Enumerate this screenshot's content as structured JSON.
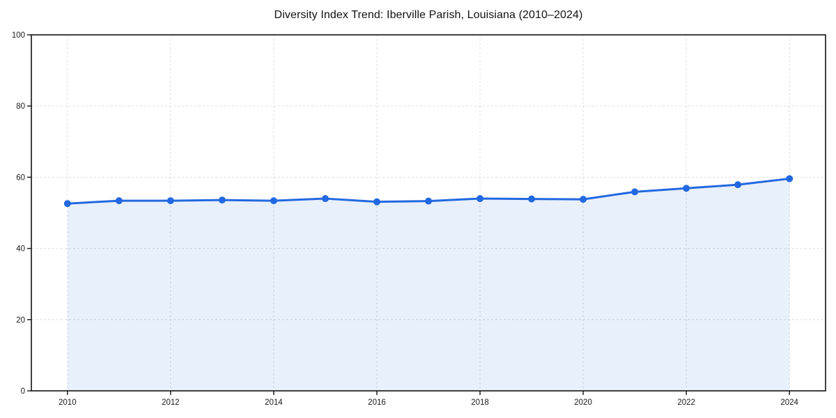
{
  "chart_data": {
    "type": "area",
    "title": "Diversity Index Trend: Iberville Parish, Louisiana (2010–2024)",
    "x": [
      2010,
      2011,
      2012,
      2013,
      2014,
      2015,
      2016,
      2017,
      2018,
      2019,
      2020,
      2021,
      2022,
      2023,
      2024
    ],
    "values": [
      52.6,
      53.4,
      53.4,
      53.6,
      53.4,
      54.0,
      53.1,
      53.3,
      54.0,
      53.9,
      53.8,
      55.9,
      56.9,
      57.9,
      59.6
    ],
    "xlabel": "",
    "ylabel": "",
    "xlim": [
      2009.3,
      2024.7
    ],
    "ylim": [
      0,
      100
    ],
    "xticks": [
      2010,
      2012,
      2014,
      2016,
      2018,
      2020,
      2022,
      2024
    ],
    "yticks": [
      0,
      20,
      40,
      60,
      80,
      100
    ],
    "grid": true,
    "legend": false,
    "marker": "circle",
    "marker_radius": 5,
    "colors": {
      "line": "#2268e0",
      "marker": "#2268e0",
      "fill": "rgba(34,104,224,0.10)",
      "gridline": "#dcdcdc",
      "axis": "#111111",
      "text": "#1a1a1a"
    }
  }
}
